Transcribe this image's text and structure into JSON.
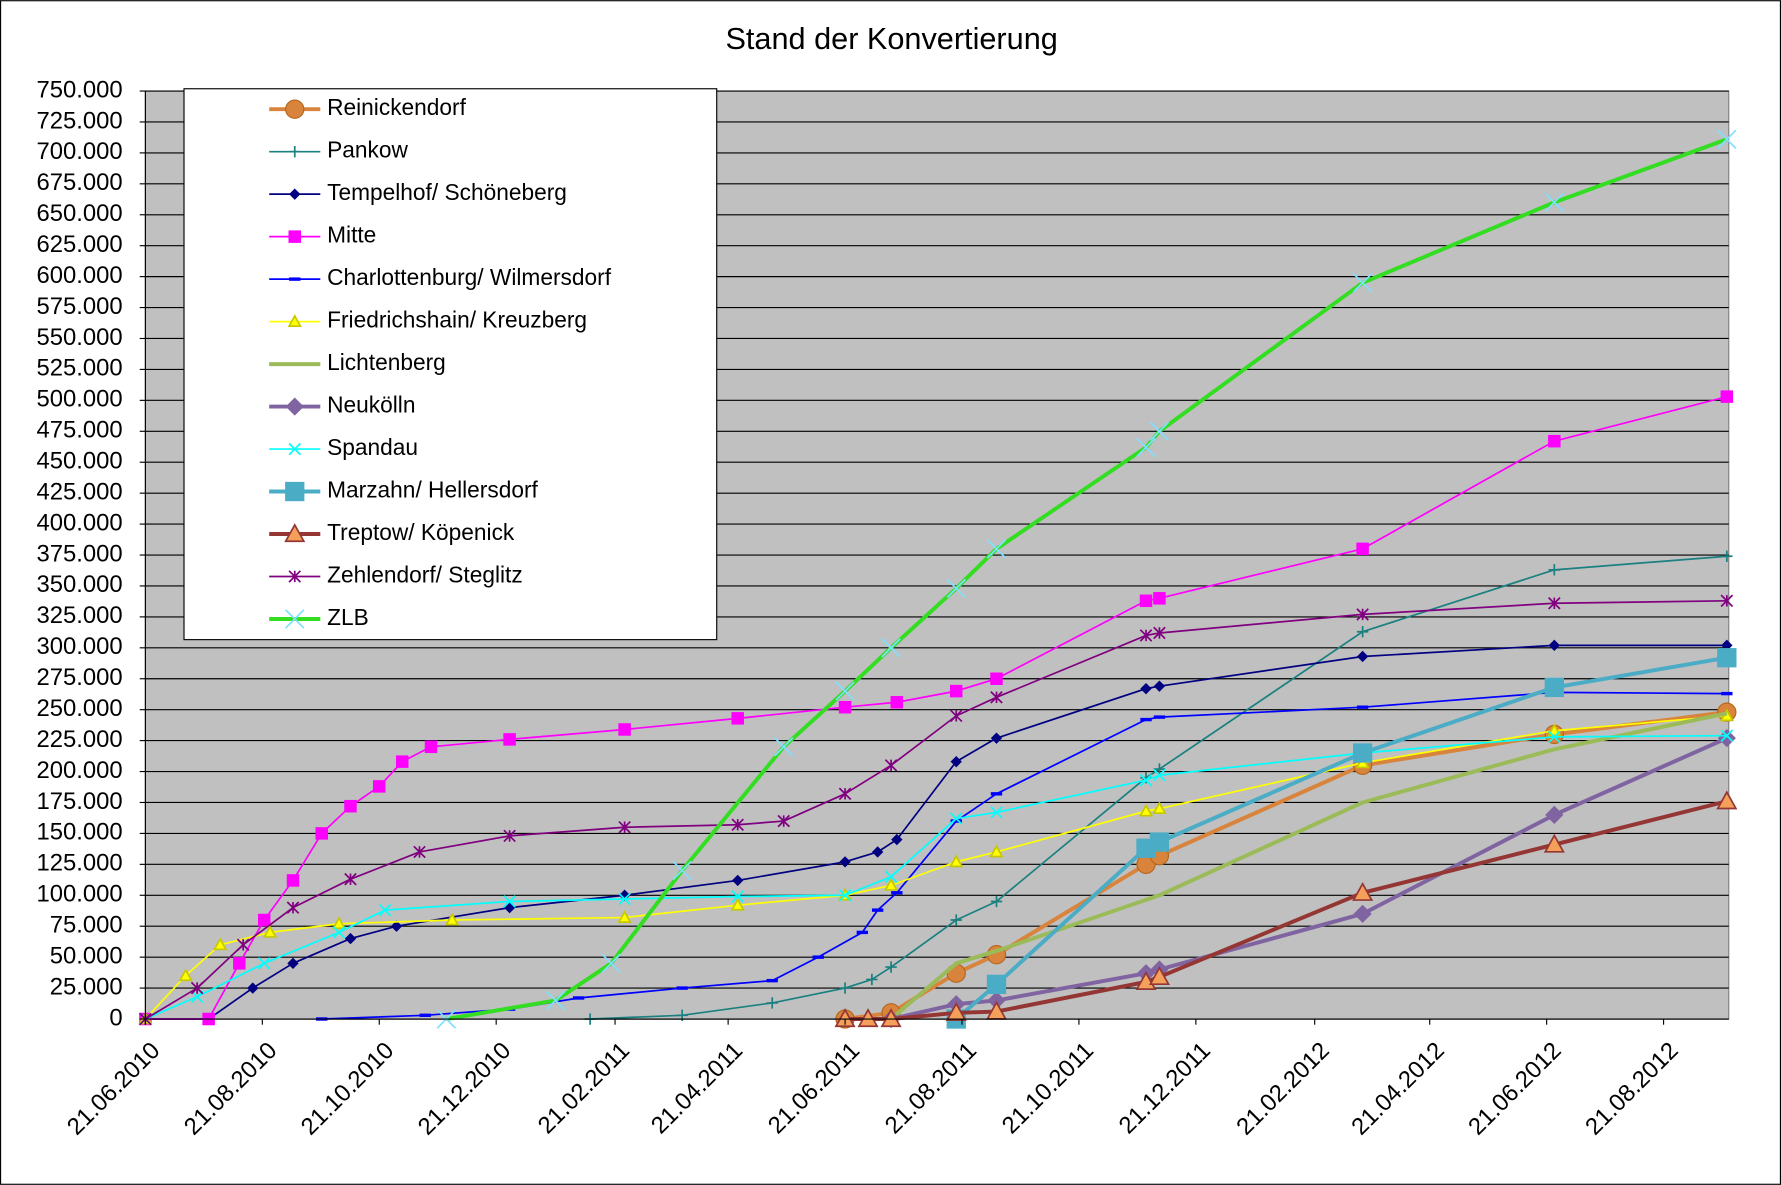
{
  "chart_data": {
    "type": "line",
    "title": "Stand der Konvertierung",
    "xlim": [
      "21.06.2010",
      "24.09.2012"
    ],
    "xticks": [
      "21.06.2010",
      "21.08.2010",
      "21.10.2010",
      "21.12.2010",
      "21.02.2011",
      "21.04.2011",
      "21.06.2011",
      "21.08.2011",
      "21.10.2011",
      "21.12.2011",
      "21.02.2012",
      "21.04.2012",
      "21.06.2012",
      "21.08.2012"
    ],
    "ylim": [
      0,
      750000
    ],
    "yticks": [
      0,
      {
        "value": 25000,
        "label": "25.000"
      },
      {
        "value": 50000,
        "label": "50.000"
      },
      {
        "value": 75000,
        "label": "75.000"
      },
      {
        "value": 100000,
        "label": "100.000"
      },
      {
        "value": 125000,
        "label": "125.000"
      },
      {
        "value": 150000,
        "label": "150.000"
      },
      {
        "value": 175000,
        "label": "175.000"
      },
      {
        "value": 200000,
        "label": "200.000"
      },
      {
        "value": 225000,
        "label": "225.000"
      },
      {
        "value": 250000,
        "label": "250.000"
      },
      {
        "value": 275000,
        "label": "275.000"
      },
      {
        "value": 300000,
        "label": "300.000"
      },
      {
        "value": 325000,
        "label": "325.000"
      },
      {
        "value": 350000,
        "label": "350.000"
      },
      {
        "value": 375000,
        "label": "375.000"
      },
      {
        "value": 400000,
        "label": "400.000"
      },
      {
        "value": 425000,
        "label": "425.000"
      },
      {
        "value": 450000,
        "label": "450.000"
      },
      {
        "value": 475000,
        "label": "475.000"
      },
      {
        "value": 500000,
        "label": "500.000"
      },
      {
        "value": 525000,
        "label": "525.000"
      },
      {
        "value": 550000,
        "label": "550.000"
      },
      {
        "value": 575000,
        "label": "575.000"
      },
      {
        "value": 600000,
        "label": "600.000"
      },
      {
        "value": 625000,
        "label": "625.000"
      },
      {
        "value": 650000,
        "label": "650.000"
      },
      {
        "value": 675000,
        "label": "675.000"
      },
      {
        "value": 700000,
        "label": "700.000"
      },
      {
        "value": 725000,
        "label": "725.000"
      },
      {
        "value": 750000,
        "label": "750.000"
      }
    ],
    "grid": true,
    "legend": "upper left",
    "series": [
      {
        "name": "Reinickendorf",
        "color": "#d9843c",
        "marker": "circle",
        "line_width": 3.5,
        "x": [
          "21.06.2011",
          "15.07.2011",
          "18.08.2011",
          "08.09.2011",
          "25.11.2011",
          "02.12.2011",
          "17.03.2012",
          "25.06.2012",
          "23.09.2012"
        ],
        "values": [
          0,
          5000,
          37000,
          52000,
          125000,
          132000,
          205000,
          230000,
          248000
        ]
      },
      {
        "name": "Pankow",
        "color": "#1a8080",
        "marker": "plus",
        "line_width": 1.5,
        "x": [
          "08.02.2011",
          "28.03.2011",
          "14.05.2011",
          "21.06.2011",
          "05.07.2011",
          "15.07.2011",
          "18.08.2011",
          "08.09.2011",
          "25.11.2011",
          "02.12.2011",
          "17.03.2012",
          "25.06.2012",
          "23.09.2012"
        ],
        "values": [
          0,
          3000,
          13000,
          25000,
          32000,
          42000,
          80000,
          95000,
          195000,
          202000,
          313000,
          363000,
          374000
        ]
      },
      {
        "name": "Tempelhof/ Schöneberg",
        "color": "#000080",
        "marker": "diamond",
        "line_width": 1.5,
        "x": [
          "21.06.2010",
          "24.07.2010",
          "16.08.2010",
          "06.09.2010",
          "06.10.2010",
          "30.10.2010",
          "28.12.2010",
          "26.02.2011",
          "26.04.2011",
          "21.06.2011",
          "08.07.2011",
          "18.07.2011",
          "18.08.2011",
          "08.09.2011",
          "25.11.2011",
          "02.12.2011",
          "17.03.2012",
          "25.06.2012",
          "23.09.2012"
        ],
        "values": [
          0,
          0,
          25000,
          45000,
          65000,
          75000,
          90000,
          100000,
          112000,
          127000,
          135000,
          145000,
          208000,
          227000,
          267000,
          269000,
          293000,
          302000,
          302000
        ]
      },
      {
        "name": "Mitte",
        "color": "#ff00ff",
        "marker": "square",
        "line_width": 1.5,
        "x": [
          "21.06.2010",
          "24.07.2010",
          "09.08.2010",
          "22.08.2010",
          "06.09.2010",
          "21.09.2010",
          "06.10.2010",
          "21.10.2010",
          "02.11.2010",
          "17.11.2010",
          "28.12.2010",
          "26.02.2011",
          "26.04.2011",
          "21.06.2011",
          "18.07.2011",
          "18.08.2011",
          "08.09.2011",
          "25.11.2011",
          "02.12.2011",
          "17.03.2012",
          "25.06.2012",
          "23.09.2012"
        ],
        "values": [
          0,
          0,
          45000,
          80000,
          112000,
          150000,
          172000,
          188000,
          208000,
          220000,
          226000,
          234000,
          243000,
          252000,
          256000,
          265000,
          275000,
          338000,
          340000,
          380000,
          467000,
          503000
        ]
      },
      {
        "name": "Charlottenburg/ Wilmersdorf",
        "color": "#0000ff",
        "marker": "dash",
        "line_width": 1.5,
        "x": [
          "21.09.2010",
          "14.11.2010",
          "28.12.2010",
          "02.02.2011",
          "28.03.2011",
          "14.05.2011",
          "07.06.2011",
          "30.06.2011",
          "08.07.2011",
          "18.07.2011",
          "18.08.2011",
          "08.09.2011",
          "25.11.2011",
          "02.12.2011",
          "17.03.2012",
          "25.06.2012",
          "23.09.2012"
        ],
        "values": [
          0,
          3000,
          8000,
          17000,
          25000,
          31000,
          50000,
          70000,
          88000,
          102000,
          160000,
          182000,
          242000,
          244000,
          252000,
          264000,
          263000
        ]
      },
      {
        "name": "Friedrichshain/ Kreuzberg",
        "color": "#ffff00",
        "marker": "triangle",
        "line_width": 1.5,
        "x": [
          "21.06.2010",
          "12.07.2010",
          "30.07.2010",
          "25.08.2010",
          "30.09.2010",
          "28.11.2010",
          "26.02.2011",
          "26.04.2011",
          "21.06.2011",
          "15.07.2011",
          "18.08.2011",
          "08.09.2011",
          "25.11.2011",
          "02.12.2011",
          "17.03.2012",
          "25.06.2012",
          "23.09.2012"
        ],
        "values": [
          0,
          35000,
          60000,
          70000,
          77000,
          80000,
          82000,
          92000,
          100000,
          108000,
          127000,
          135000,
          168000,
          170000,
          207000,
          233000,
          245000
        ]
      },
      {
        "name": "Lichtenberg",
        "color": "#9bbb59",
        "marker": "none",
        "line_width": 3.5,
        "x": [
          "15.07.2011",
          "18.08.2011",
          "08.09.2011",
          "02.12.2011",
          "17.03.2012",
          "25.06.2012",
          "23.09.2012"
        ],
        "values": [
          0,
          45000,
          55000,
          100000,
          175000,
          218000,
          247000
        ]
      },
      {
        "name": "Neukölln",
        "color": "#8064a2",
        "marker": "diamond",
        "line_width": 3.5,
        "x": [
          "15.07.2011",
          "18.08.2011",
          "08.09.2011",
          "25.11.2011",
          "02.12.2011",
          "17.03.2012",
          "25.06.2012",
          "23.09.2012"
        ],
        "values": [
          0,
          12000,
          15000,
          37000,
          40000,
          85000,
          165000,
          227000
        ]
      },
      {
        "name": "Spandau",
        "color": "#00ffff",
        "marker": "x",
        "line_width": 1.5,
        "x": [
          "21.06.2010",
          "18.07.2010",
          "22.08.2010",
          "30.09.2010",
          "24.10.2010",
          "28.12.2010",
          "26.02.2011",
          "26.04.2011",
          "21.06.2011",
          "15.07.2011",
          "18.08.2011",
          "08.09.2011",
          "25.11.2011",
          "02.12.2011",
          "17.03.2012",
          "25.06.2012",
          "23.09.2012"
        ],
        "values": [
          0,
          18000,
          45000,
          70000,
          88000,
          95000,
          97000,
          99000,
          100000,
          115000,
          162000,
          167000,
          193000,
          197000,
          215000,
          228000,
          229000
        ]
      },
      {
        "name": "Marzahn/ Hellersdorf",
        "color": "#4bacc6",
        "marker": "square",
        "line_width": 3.5,
        "x": [
          "18.08.2011",
          "08.09.2011",
          "25.11.2011",
          "02.12.2011",
          "17.03.2012",
          "25.06.2012",
          "23.09.2012"
        ],
        "values": [
          0,
          28000,
          138000,
          143000,
          215000,
          268000,
          292000
        ]
      },
      {
        "name": "Treptow/ Köpenick",
        "color": "#943634",
        "marker": "triangle",
        "line_width": 3.5,
        "x": [
          "21.06.2011",
          "03.07.2011",
          "15.07.2011",
          "18.08.2011",
          "08.09.2011",
          "25.11.2011",
          "02.12.2011",
          "17.03.2012",
          "25.06.2012",
          "23.09.2012"
        ],
        "values": [
          0,
          0,
          0,
          5000,
          6000,
          30000,
          34000,
          102000,
          141000,
          176000
        ]
      },
      {
        "name": "Zehlendorf/ Steglitz",
        "color": "#800080",
        "marker": "star",
        "line_width": 1.5,
        "x": [
          "21.06.2010",
          "18.07.2010",
          "11.08.2010",
          "06.09.2010",
          "06.10.2010",
          "11.11.2010",
          "28.12.2010",
          "26.02.2011",
          "26.04.2011",
          "20.05.2011",
          "21.06.2011",
          "15.07.2011",
          "18.08.2011",
          "08.09.2011",
          "25.11.2011",
          "02.12.2011",
          "17.03.2012",
          "25.06.2012",
          "23.09.2012"
        ],
        "values": [
          0,
          25000,
          60000,
          90000,
          113000,
          135000,
          148000,
          155000,
          157000,
          160000,
          182000,
          205000,
          245000,
          260000,
          310000,
          312000,
          327000,
          336000,
          338000
        ]
      },
      {
        "name": "ZLB",
        "color": "#33dd22",
        "marker": "x",
        "line_width": 3.5,
        "x": [
          "25.11.2010",
          "21.01.2011",
          "19.02.2011",
          "28.03.2011",
          "20.05.2011",
          "21.06.2011",
          "15.07.2011",
          "18.08.2011",
          "08.09.2011",
          "25.11.2011",
          "02.12.2011",
          "17.03.2012",
          "25.06.2012",
          "23.09.2012"
        ],
        "values": [
          0,
          15000,
          45000,
          120000,
          220000,
          265000,
          300000,
          348000,
          380000,
          462000,
          475000,
          595000,
          660000,
          711000
        ]
      }
    ]
  }
}
